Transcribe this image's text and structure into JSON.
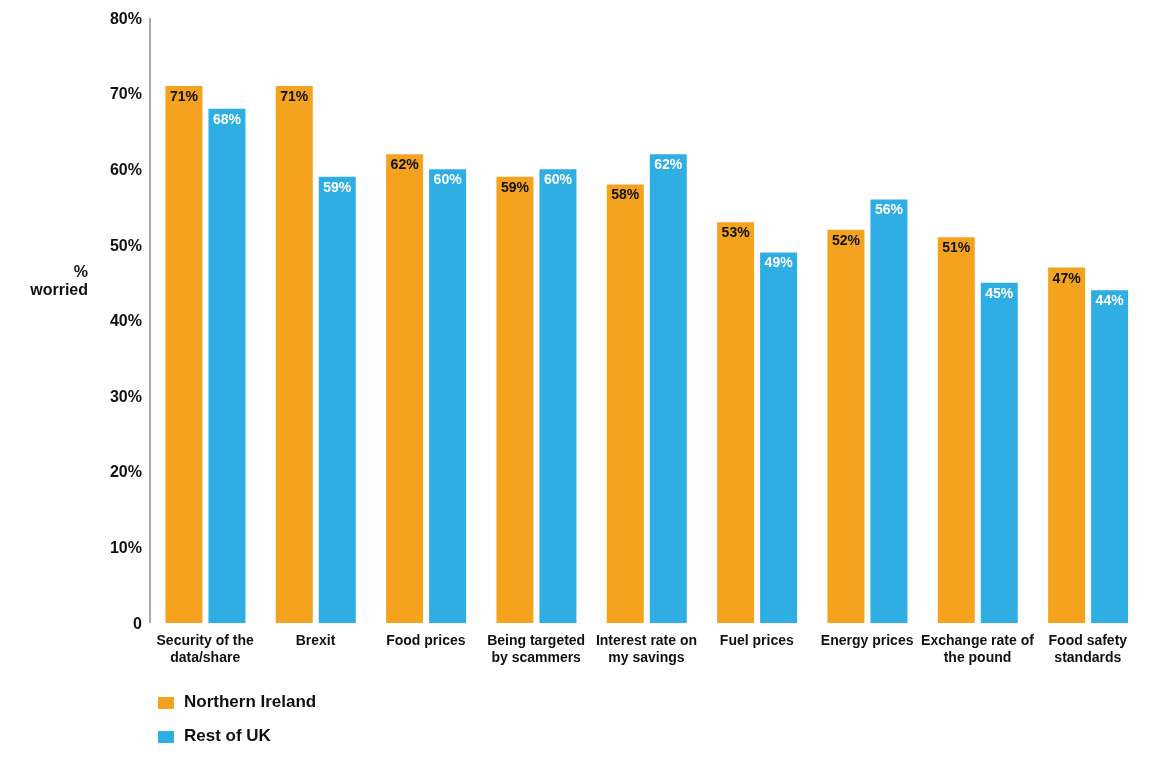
{
  "chart_data": {
    "type": "bar",
    "ylabel": "% worried",
    "categories": [
      "Security of the data/share",
      "Brexit",
      "Food prices",
      "Being targeted by scammers",
      "Interest rate on my savings",
      "Fuel prices",
      "Energy prices",
      "Exchange rate of the pound",
      "Food safety standards"
    ],
    "series": [
      {
        "name": "Northern Ireland",
        "color": "#f5a31e",
        "values": [
          71,
          71,
          62,
          59,
          58,
          53,
          52,
          51,
          47
        ],
        "value_labels": [
          "71%",
          "71%",
          "62%",
          "59%",
          "58%",
          "53%",
          "52%",
          "51%",
          "47%"
        ]
      },
      {
        "name": "Rest of UK",
        "color": "#2eaee3",
        "values": [
          68,
          59,
          60,
          60,
          62,
          49,
          56,
          45,
          44
        ],
        "value_labels": [
          "68%",
          "59%",
          "60%",
          "60%",
          "62%",
          "49%",
          "56%",
          "45%",
          "44%"
        ]
      }
    ],
    "ylim": [
      0,
      80
    ],
    "yticks": [
      {
        "value": 0,
        "label": "0"
      },
      {
        "value": 10,
        "label": "10%"
      },
      {
        "value": 20,
        "label": "20%"
      },
      {
        "value": 30,
        "label": "30%"
      },
      {
        "value": 40,
        "label": "40%"
      },
      {
        "value": 50,
        "label": "50%"
      },
      {
        "value": 60,
        "label": "60%"
      },
      {
        "value": 70,
        "label": "70%"
      },
      {
        "value": 80,
        "label": "80%"
      }
    ],
    "grid": false,
    "legend": "bottom left"
  }
}
